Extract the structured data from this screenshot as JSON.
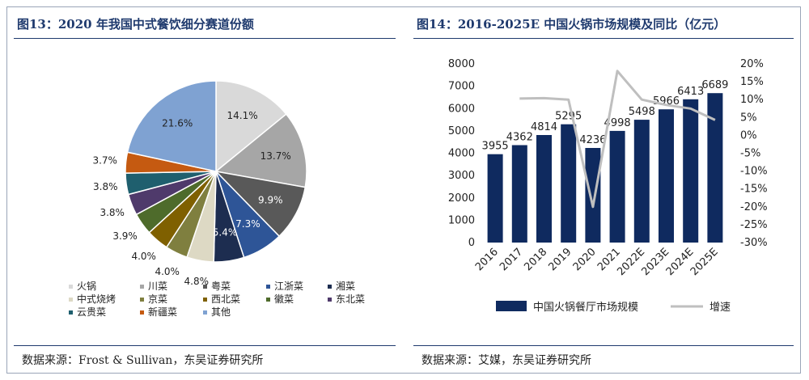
{
  "left": {
    "title": "图13：2020 年我国中式餐饮细分赛道份额",
    "source": "数据来源：Frost & Sullivan，东吴证券研究所"
  },
  "right": {
    "title": "图14：2016-2025E 中国火锅市场规模及同比（亿元）",
    "source": "数据来源：艾媒，东吴证券研究所"
  },
  "chart_data": [
    {
      "type": "pie",
      "title": "2020 年我国中式餐饮细分赛道份额",
      "slices": [
        {
          "label": "火锅",
          "value": 14.1,
          "display": "14.1%",
          "color": "#d9d9d9"
        },
        {
          "label": "川菜",
          "value": 13.7,
          "display": "13.7%",
          "color": "#a6a6a6"
        },
        {
          "label": "粤菜",
          "value": 9.9,
          "display": "9.9%",
          "color": "#595959"
        },
        {
          "label": "江浙菜",
          "value": 7.3,
          "display": "7.3%",
          "color": "#2e5597"
        },
        {
          "label": "湘菜",
          "value": 5.4,
          "display": "5.4%",
          "color": "#1d2d50"
        },
        {
          "label": "中式烧烤",
          "value": 4.8,
          "display": "4.8%",
          "color": "#ddd9c4"
        },
        {
          "label": "京菜",
          "value": 4.0,
          "display": "4.0%",
          "color": "#7f7f3f"
        },
        {
          "label": "西北菜",
          "value": 4.0,
          "display": "4.0%",
          "color": "#7f6000"
        },
        {
          "label": "徽菜",
          "value": 3.9,
          "display": "3.9%",
          "color": "#4e6b2b"
        },
        {
          "label": "东北菜",
          "value": 3.8,
          "display": "3.8%",
          "color": "#4f3a6b"
        },
        {
          "label": "云贵菜",
          "value": 3.8,
          "display": "3.8%",
          "color": "#1f5f6e"
        },
        {
          "label": "新疆菜",
          "value": 3.7,
          "display": "3.7%",
          "color": "#c55a11"
        },
        {
          "label": "其他",
          "value": 21.6,
          "display": "21.6%",
          "color": "#7fa2d2"
        }
      ]
    },
    {
      "type": "bar",
      "title": "2016-2025E 中国火锅市场规模及同比（亿元）",
      "categories": [
        "2016",
        "2017",
        "2018",
        "2019",
        "2020",
        "2021",
        "2022E",
        "2023E",
        "2024E",
        "2025E"
      ],
      "series": [
        {
          "name": "中国火锅餐厅市场规模",
          "type": "bar",
          "axis": "left",
          "color": "#0f2a5f",
          "values": [
            3955,
            4362,
            4814,
            5295,
            4236,
            4998,
            5498,
            5966,
            6413,
            6689
          ]
        },
        {
          "name": "增速",
          "type": "line",
          "axis": "right",
          "color": "#bfbfbf",
          "values": [
            null,
            10.3,
            10.4,
            10.0,
            -20.0,
            18.0,
            10.0,
            8.5,
            7.5,
            4.3
          ]
        }
      ],
      "y_left": {
        "min": 0,
        "max": 8000,
        "ticks": [
          "0",
          "1000",
          "2000",
          "3000",
          "4000",
          "5000",
          "6000",
          "7000",
          "8000"
        ]
      },
      "y_right": {
        "min": -30,
        "max": 20,
        "ticks": [
          "-30%",
          "-25%",
          "-20%",
          "-15%",
          "-10%",
          "-5%",
          "0%",
          "5%",
          "10%",
          "15%",
          "20%"
        ]
      },
      "legend": "bottom"
    }
  ]
}
